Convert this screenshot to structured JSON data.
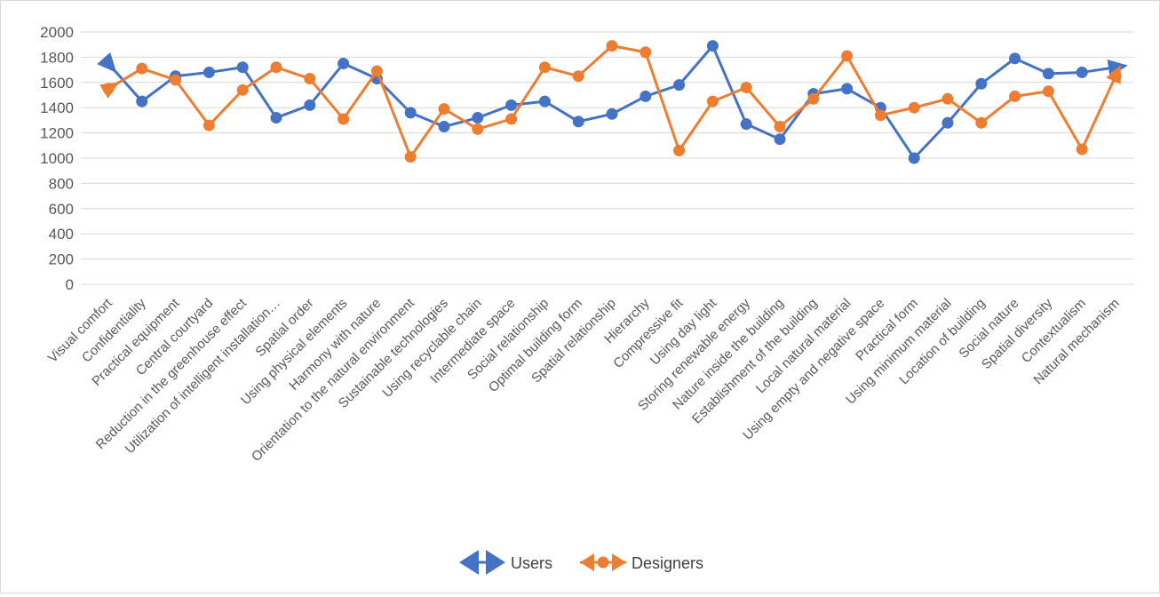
{
  "chart_data": {
    "type": "line",
    "title": "",
    "xlabel": "",
    "ylabel": "",
    "ylim": [
      0,
      2000
    ],
    "yticks": [
      0,
      200,
      400,
      600,
      800,
      1000,
      1200,
      1400,
      1600,
      1800,
      2000
    ],
    "grid": true,
    "legend_position": "bottom",
    "categories": [
      "Visual comfort",
      "Confidentiality",
      "Practical equipment",
      "Central courtyard",
      "Reduction in the greenhouse effect",
      "Utilization of intelligent installation…",
      "Spatial order",
      "Using physical elements",
      "Harmony with nature",
      "Orientation to the natural environment",
      "Sustainable technologies",
      "Using recyclable chain",
      "Intermediate space",
      "Social relationship",
      "Optimal building form",
      "Spatial relationship",
      "Hierarchy",
      "Compressive fit",
      "Using day light",
      "Storing renewable energy",
      "Nature inside the building",
      "Establishment of the building",
      "Local natural material",
      "Using empty and negative space",
      "Practical form",
      "Using minimum material",
      "Location of building",
      "Social nature",
      "Spatial diversity",
      "Contextualism",
      "Natural mechanism"
    ],
    "series": [
      {
        "name": "Users",
        "color": "#4472c4",
        "values": [
          1750,
          1450,
          1650,
          1680,
          1720,
          1320,
          1420,
          1750,
          1630,
          1360,
          1250,
          1320,
          1420,
          1450,
          1290,
          1350,
          1490,
          1580,
          1890,
          1270,
          1150,
          1510,
          1550,
          1400,
          1000,
          1280,
          1590,
          1790,
          1670,
          1680,
          1720
        ]
      },
      {
        "name": "Designers",
        "color": "#ed7d31",
        "values": [
          1550,
          1710,
          1620,
          1260,
          1540,
          1720,
          1630,
          1310,
          1690,
          1010,
          1390,
          1230,
          1310,
          1720,
          1650,
          1890,
          1840,
          1060,
          1450,
          1560,
          1250,
          1470,
          1810,
          1340,
          1400,
          1470,
          1280,
          1490,
          1530,
          1070,
          1650
        ]
      }
    ]
  }
}
